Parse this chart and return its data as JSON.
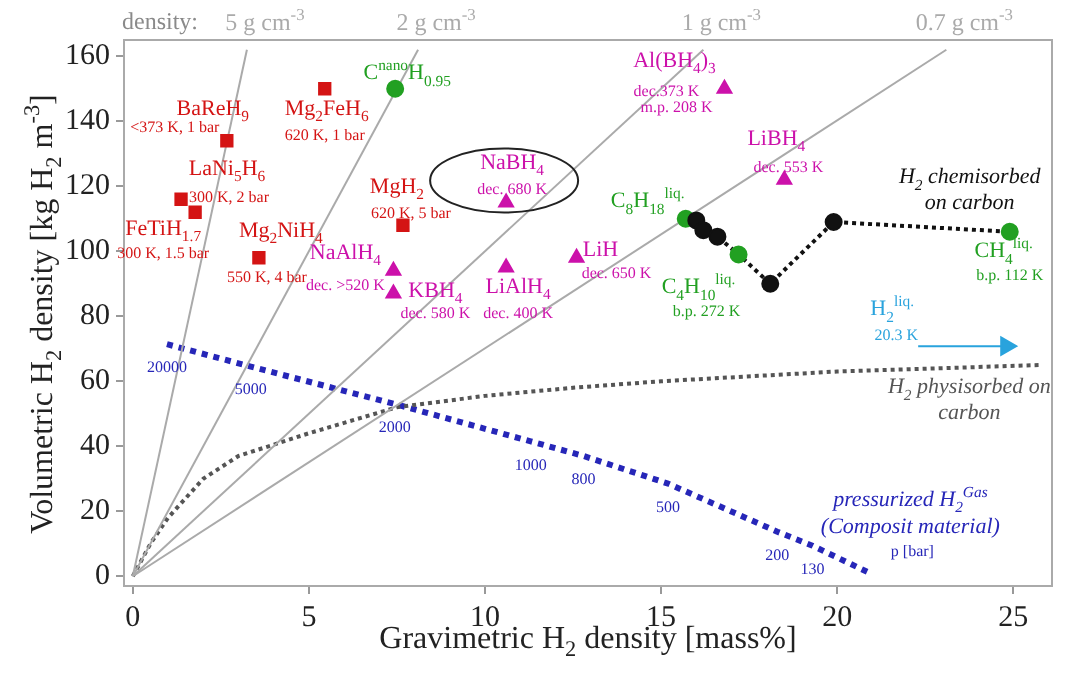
{
  "chart_data": {
    "type": "scatter",
    "xlabel": "Gravimetric H$_{2}$ density [mass%]",
    "ylabel": "Volumetric H$_{2}$ density [kg H$_{2}$ m$^{-3}$]",
    "xlim": [
      -0.25,
      26.1
    ],
    "xticks": [
      0,
      5,
      10,
      15,
      20,
      25
    ],
    "ylim": [
      -3,
      165
    ],
    "yticks": [
      0,
      20,
      40,
      60,
      80,
      100,
      120,
      140,
      160
    ],
    "grid": false,
    "legend": false,
    "series": [
      {
        "type": "line",
        "name": "5 g cm$^{-3}$",
        "color": "#aaaaaa",
        "x": [
          0,
          3.24
        ],
        "values": [
          0,
          162
        ],
        "marker": "none",
        "line_style": "solid"
      },
      {
        "type": "line",
        "name": "2 g cm$^{-3}$",
        "color": "#aaaaaa",
        "x": [
          0,
          8.1
        ],
        "values": [
          0,
          162
        ],
        "marker": "none",
        "line_style": "solid"
      },
      {
        "type": "line",
        "name": "1 g cm$^{-3}$",
        "color": "#aaaaaa",
        "x": [
          0,
          16.2
        ],
        "values": [
          0,
          162
        ],
        "marker": "none",
        "line_style": "solid"
      },
      {
        "type": "line",
        "name": "0.7 g cm$^{-3}$",
        "color": "#aaaaaa",
        "x": [
          0,
          23.1
        ],
        "values": [
          0,
          162
        ],
        "marker": "none",
        "line_style": "solid"
      },
      {
        "type": "line",
        "name": "H$_{2}$ physisorbed on carbon",
        "color": "#555555",
        "x": [
          0,
          0.5,
          1,
          2,
          3,
          5,
          7.5,
          10,
          12.5,
          15,
          20,
          25.8
        ],
        "values": [
          0,
          10,
          18,
          30,
          37,
          44,
          52,
          55.5,
          58,
          60,
          63,
          65
        ],
        "marker": "none",
        "line_style": "dotted"
      },
      {
        "type": "line",
        "name": "pressurized H$_{2}$$^{Gas}$ (Composit material)",
        "color": "#2626b8",
        "x": [
          0.97,
          3.35,
          7.44,
          11.3,
          12.8,
          15.2,
          18.3,
          19.3,
          21.0
        ],
        "values": [
          71.4,
          64.5,
          53,
          41.5,
          37,
          28.5,
          13.7,
          9.4,
          0.6
        ],
        "marker": "none",
        "line_style": "dashed"
      },
      {
        "type": "line",
        "name": "H$_{2}$ chemisorbed on carbon",
        "color": "#111111",
        "x": [
          15.7,
          16.0,
          16.2,
          16.6,
          17.2,
          18.1,
          19.9,
          24.9
        ],
        "values": [
          110,
          109.5,
          106.5,
          104.5,
          99,
          90,
          109,
          106
        ],
        "marker": "none",
        "line_style": "dotted"
      },
      {
        "type": "line",
        "name": "H$_{2}$$^{liq.}$",
        "color": "#29a3dd",
        "x": [
          22.3,
          24.8
        ],
        "values": [
          70.8,
          70.8
        ],
        "marker": "triangle",
        "line_style": "solid"
      },
      {
        "color": "#111111",
        "x": [
          16.0,
          16.2,
          16.6,
          18.1,
          19.9
        ],
        "values": [
          109.5,
          106.5,
          104.5,
          90,
          109
        ],
        "marker": "circle"
      },
      {
        "name": "BaReH$_{9}$",
        "color": "#d41414",
        "x": [
          2.67
        ],
        "values": [
          134
        ],
        "marker": "square"
      },
      {
        "name": "Mg$_{2}$FeH$_{6}$",
        "color": "#d41414",
        "x": [
          5.45
        ],
        "values": [
          150
        ],
        "marker": "square"
      },
      {
        "name": "LaNi$_{5}$H$_{6}$",
        "color": "#d41414",
        "x": [
          1.37
        ],
        "values": [
          116
        ],
        "marker": "square"
      },
      {
        "name": "FeTiH$_{1.7}$",
        "color": "#d41414",
        "x": [
          1.77
        ],
        "values": [
          112
        ],
        "marker": "square"
      },
      {
        "name": "Mg$_{2}$NiH$_{4}$",
        "color": "#d41414",
        "x": [
          3.58
        ],
        "values": [
          98
        ],
        "marker": "square"
      },
      {
        "name": "MgH$_{2}$",
        "color": "#d41414",
        "x": [
          7.67
        ],
        "values": [
          108
        ],
        "marker": "square"
      },
      {
        "name": "C$^{nano}$H$_{0.95}$",
        "color": "#22a022",
        "x": [
          7.45
        ],
        "values": [
          150
        ],
        "marker": "circle"
      },
      {
        "name": "NaBH$_{4}$",
        "color": "#cc11aa",
        "x": [
          10.6
        ],
        "values": [
          115
        ],
        "marker": "triangle"
      },
      {
        "name": "NaAlH$_{4}$",
        "color": "#cc11aa",
        "x": [
          7.4
        ],
        "values": [
          94
        ],
        "marker": "triangle"
      },
      {
        "name": "KBH$_{4}$",
        "color": "#cc11aa",
        "x": [
          7.4
        ],
        "values": [
          87
        ],
        "marker": "triangle"
      },
      {
        "name": "LiAlH$_{4}$",
        "color": "#cc11aa",
        "x": [
          10.6
        ],
        "values": [
          95
        ],
        "marker": "triangle"
      },
      {
        "name": "Al(BH$_{4}$)$_{3}$",
        "color": "#cc11aa",
        "x": [
          16.8
        ],
        "values": [
          150
        ],
        "marker": "triangle"
      },
      {
        "name": "LiBH$_{4}$",
        "color": "#cc11aa",
        "x": [
          18.5
        ],
        "values": [
          122
        ],
        "marker": "triangle"
      },
      {
        "name": "LiH",
        "color": "#cc11aa",
        "x": [
          12.6
        ],
        "values": [
          98
        ],
        "marker": "triangle"
      },
      {
        "name": "C$_{8}$H$_{18}$$^{liq.}$",
        "color": "#22a022",
        "x": [
          15.7
        ],
        "values": [
          110
        ],
        "marker": "circle"
      },
      {
        "name": "C$_{4}$H$_{10}$$^{liq.}$",
        "color": "#22a022",
        "x": [
          17.2
        ],
        "values": [
          99
        ],
        "marker": "circle"
      },
      {
        "name": "CH$_{4}$$^{liq.}$",
        "color": "#22a022",
        "x": [
          24.9
        ],
        "values": [
          106
        ],
        "marker": "circle"
      }
    ],
    "annotations": [
      "density:",
      {
        "text": "<373 K, 1 bar",
        "x": 2.67,
        "y": 134
      },
      {
        "text": "620 K, 1 bar",
        "x": 5.45,
        "y": 150
      },
      {
        "text": "300 K, 2 bar",
        "x": 1.37,
        "y": 116
      },
      {
        "text": "300 K, 1.5 bar",
        "x": 1.77,
        "y": 112
      },
      {
        "text": "550 K, 4 bar",
        "x": 3.58,
        "y": 98
      },
      {
        "text": "620 K, 5 bar",
        "x": 7.67,
        "y": 108
      },
      {
        "text": "dec. 680 K",
        "x": 10.6,
        "y": 115
      },
      {
        "text": "dec. >520 K",
        "x": 7.4,
        "y": 94
      },
      {
        "text": "dec. 580 K",
        "x": 7.4,
        "y": 87
      },
      {
        "text": "dec. 400 K",
        "x": 10.6,
        "y": 95
      },
      {
        "text": "dec.373 K",
        "x": 16.8,
        "y": 150
      },
      {
        "text": "m.p. 208 K",
        "x": 16.8,
        "y": 150
      },
      {
        "text": "dec. 553 K",
        "x": 18.5,
        "y": 122
      },
      {
        "text": "dec. 650 K",
        "x": 12.6,
        "y": 98
      },
      {
        "text": "b.p. 272 K",
        "x": 17.2,
        "y": 99
      },
      {
        "text": "b.p. 112 K",
        "x": 24.9,
        "y": 106
      },
      {
        "text": "20.3 K",
        "x": 22.3,
        "y": 70.8
      },
      {
        "text": "20000",
        "x": 0.97,
        "y": 71.4
      },
      {
        "text": "5000",
        "x": 3.35,
        "y": 64.5
      },
      {
        "text": "2000",
        "x": 7.44,
        "y": 53
      },
      {
        "text": "1000",
        "x": 11.3,
        "y": 41.5
      },
      {
        "text": "800",
        "x": 12.8,
        "y": 37
      },
      {
        "text": "500",
        "x": 15.2,
        "y": 28.5
      },
      {
        "text": "200",
        "x": 18.3,
        "y": 13.7
      },
      {
        "text": "130",
        "x": 19.3,
        "y": 9.4
      },
      {
        "text": "p [bar]",
        "x": 21.0,
        "y": 0.6
      }
    ]
  }
}
